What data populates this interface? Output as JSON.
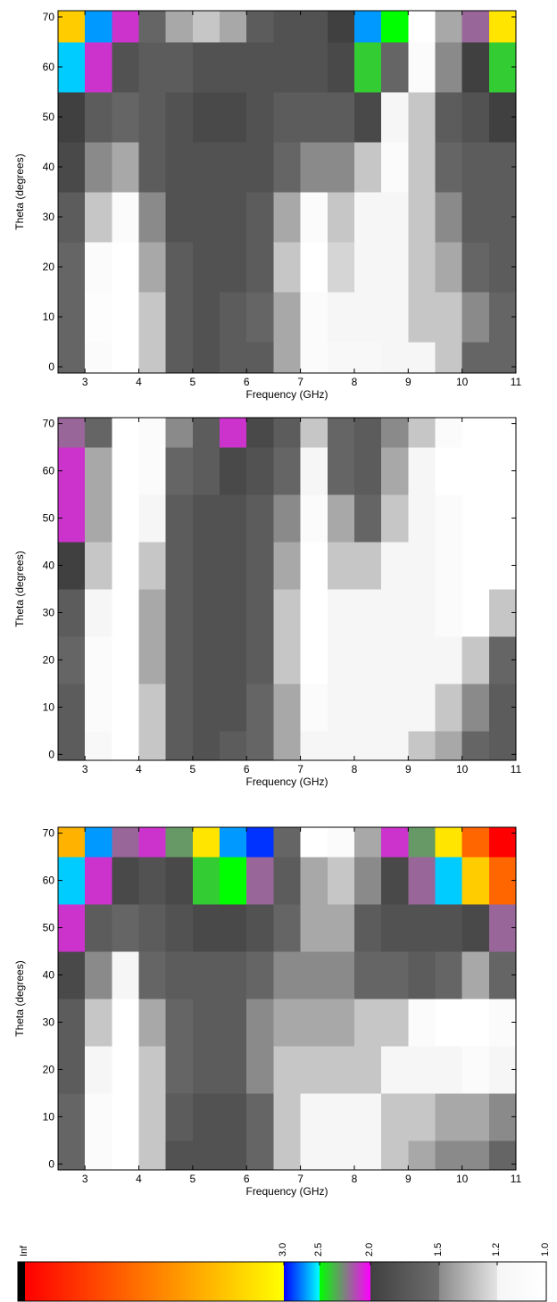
{
  "chart_data": [
    {
      "type": "heatmap",
      "x_label": "Frequency (GHz)",
      "y_label": "Theta (degrees)",
      "x": [
        2.75,
        3.25,
        3.75,
        4.25,
        4.75,
        5.25,
        5.75,
        6.25,
        6.75,
        7.25,
        7.75,
        8.25,
        8.75,
        9.25,
        9.75,
        10.25,
        10.75
      ],
      "y": [
        0,
        10,
        20,
        30,
        40,
        50,
        60,
        70
      ],
      "values": [
        [
          1.6,
          1.1,
          1.0,
          1.3,
          1.7,
          1.8,
          1.7,
          1.7,
          1.4,
          1.1,
          1.15,
          1.15,
          1.2,
          1.2,
          1.3,
          1.6,
          1.6
        ],
        [
          1.6,
          1.05,
          1.0,
          1.3,
          1.7,
          1.8,
          1.7,
          1.6,
          1.4,
          1.1,
          1.2,
          1.2,
          1.2,
          1.3,
          1.3,
          1.5,
          1.6
        ],
        [
          1.6,
          1.1,
          1.0,
          1.4,
          1.7,
          1.8,
          1.8,
          1.7,
          1.3,
          1.0,
          1.25,
          1.2,
          1.2,
          1.3,
          1.4,
          1.6,
          1.7
        ],
        [
          1.7,
          1.3,
          1.1,
          1.5,
          1.8,
          1.8,
          1.8,
          1.7,
          1.4,
          1.1,
          1.3,
          1.2,
          1.2,
          1.3,
          1.5,
          1.7,
          1.7
        ],
        [
          1.9,
          1.5,
          1.4,
          1.7,
          1.8,
          1.8,
          1.8,
          1.8,
          1.6,
          1.5,
          1.5,
          1.3,
          1.1,
          1.3,
          1.6,
          1.7,
          1.7
        ],
        [
          2.0,
          1.7,
          1.6,
          1.7,
          1.8,
          1.9,
          1.9,
          1.8,
          1.7,
          1.7,
          1.7,
          1.9,
          1.2,
          1.3,
          1.7,
          1.8,
          2.0
        ],
        [
          2.6,
          2.1,
          1.8,
          1.7,
          1.7,
          1.8,
          1.8,
          1.8,
          1.8,
          1.8,
          1.9,
          2.4,
          1.6,
          1.1,
          1.5,
          2.0,
          2.4
        ],
        [
          3.2,
          2.7,
          2.1,
          1.6,
          1.4,
          1.3,
          1.4,
          1.7,
          1.8,
          1.8,
          2.0,
          2.7,
          2.5,
          1.0,
          1.4,
          2.2,
          3.1
        ]
      ],
      "xlim": [
        2.5,
        11
      ],
      "ylim": [
        -1.25,
        71.25
      ],
      "xticks": [
        3,
        4,
        5,
        6,
        7,
        8,
        9,
        10,
        11
      ],
      "yticks": [
        0,
        10,
        20,
        30,
        40,
        50,
        60,
        70
      ]
    },
    {
      "type": "heatmap",
      "x_label": "Frequency (GHz)",
      "y_label": "Theta (degrees)",
      "x": [
        2.75,
        3.25,
        3.75,
        4.25,
        4.75,
        5.25,
        5.75,
        6.25,
        6.75,
        7.25,
        7.75,
        8.25,
        8.75,
        9.25,
        9.75,
        10.25,
        10.75
      ],
      "y": [
        0,
        10,
        20,
        30,
        40,
        50,
        60,
        70
      ],
      "values": [
        [
          1.7,
          1.15,
          1.0,
          1.3,
          1.7,
          1.8,
          1.7,
          1.6,
          1.4,
          1.2,
          1.2,
          1.2,
          1.2,
          1.3,
          1.4,
          1.6,
          1.7
        ],
        [
          1.7,
          1.1,
          1.0,
          1.3,
          1.7,
          1.8,
          1.8,
          1.6,
          1.4,
          1.1,
          1.2,
          1.2,
          1.2,
          1.2,
          1.3,
          1.5,
          1.7
        ],
        [
          1.6,
          1.1,
          1.0,
          1.4,
          1.7,
          1.8,
          1.8,
          1.7,
          1.3,
          1.0,
          1.2,
          1.2,
          1.2,
          1.2,
          1.2,
          1.3,
          1.6
        ],
        [
          1.7,
          1.2,
          1.0,
          1.4,
          1.7,
          1.8,
          1.8,
          1.7,
          1.3,
          1.0,
          1.2,
          1.2,
          1.2,
          1.2,
          1.1,
          1.0,
          1.3
        ],
        [
          2.0,
          1.3,
          1.0,
          1.3,
          1.7,
          1.8,
          1.8,
          1.7,
          1.4,
          1.0,
          1.3,
          1.3,
          1.2,
          1.2,
          1.1,
          1.0,
          1.0
        ],
        [
          2.1,
          1.4,
          1.0,
          1.2,
          1.7,
          1.8,
          1.8,
          1.7,
          1.5,
          1.1,
          1.4,
          1.6,
          1.3,
          1.2,
          1.1,
          1.0,
          1.0
        ],
        [
          2.1,
          1.4,
          1.0,
          1.1,
          1.6,
          1.7,
          1.9,
          1.8,
          1.6,
          1.2,
          1.6,
          1.7,
          1.4,
          1.2,
          1.0,
          1.0,
          1.0
        ],
        [
          2.2,
          1.6,
          1.0,
          1.1,
          1.5,
          1.7,
          2.1,
          1.9,
          1.7,
          1.3,
          1.6,
          1.7,
          1.5,
          1.3,
          1.1,
          1.0,
          1.0
        ]
      ],
      "xlim": [
        2.5,
        11
      ],
      "ylim": [
        -1.25,
        71.25
      ],
      "xticks": [
        3,
        4,
        5,
        6,
        7,
        8,
        9,
        10,
        11
      ],
      "yticks": [
        0,
        10,
        20,
        30,
        40,
        50,
        60,
        70
      ]
    },
    {
      "type": "heatmap",
      "x_label": "Frequency (GHz)",
      "y_label": "Theta (degrees)",
      "x": [
        2.75,
        3.25,
        3.75,
        4.25,
        4.75,
        5.25,
        5.75,
        6.25,
        6.75,
        7.25,
        7.75,
        8.25,
        8.75,
        9.25,
        9.75,
        10.25,
        10.75
      ],
      "y": [
        0,
        10,
        20,
        30,
        40,
        50,
        60,
        70
      ],
      "values": [
        [
          1.6,
          1.1,
          1.0,
          1.3,
          1.8,
          1.8,
          1.8,
          1.6,
          1.3,
          1.2,
          1.2,
          1.2,
          1.3,
          1.4,
          1.5,
          1.5,
          1.6
        ],
        [
          1.6,
          1.1,
          1.0,
          1.3,
          1.7,
          1.8,
          1.8,
          1.6,
          1.3,
          1.2,
          1.2,
          1.2,
          1.3,
          1.3,
          1.4,
          1.4,
          1.5
        ],
        [
          1.7,
          1.2,
          1.0,
          1.3,
          1.6,
          1.7,
          1.7,
          1.5,
          1.3,
          1.3,
          1.3,
          1.3,
          1.2,
          1.2,
          1.2,
          1.1,
          1.2
        ],
        [
          1.7,
          1.3,
          1.0,
          1.4,
          1.6,
          1.7,
          1.7,
          1.5,
          1.4,
          1.4,
          1.4,
          1.3,
          1.3,
          1.1,
          1.0,
          1.0,
          1.1
        ],
        [
          1.9,
          1.5,
          1.2,
          1.6,
          1.7,
          1.7,
          1.7,
          1.6,
          1.5,
          1.5,
          1.5,
          1.6,
          1.6,
          1.7,
          1.6,
          1.4,
          1.6
        ],
        [
          2.1,
          1.7,
          1.6,
          1.7,
          1.8,
          1.9,
          1.9,
          1.8,
          1.6,
          1.4,
          1.4,
          1.7,
          1.8,
          1.8,
          1.8,
          1.9,
          2.2
        ],
        [
          2.6,
          2.1,
          1.9,
          1.8,
          1.9,
          2.4,
          2.5,
          2.2,
          1.7,
          1.4,
          1.3,
          1.5,
          1.9,
          2.2,
          2.6,
          3.2,
          3.6
        ],
        [
          3.3,
          2.7,
          2.2,
          2.1,
          2.3,
          3.1,
          2.7,
          2.9,
          1.6,
          1.0,
          1.1,
          1.4,
          2.1,
          2.3,
          3.1,
          3.6,
          4.0
        ]
      ],
      "xlim": [
        2.5,
        11
      ],
      "ylim": [
        -1.25,
        71.25
      ],
      "xticks": [
        3,
        4,
        5,
        6,
        7,
        8,
        9,
        10,
        11
      ],
      "yticks": [
        0,
        10,
        20,
        30,
        40,
        50,
        60,
        70
      ]
    }
  ],
  "colormap": [
    {
      "from": 1.0,
      "to": 1.2,
      "colors": [
        "#ffffff",
        "#f6f6f6"
      ]
    },
    {
      "from": 1.2,
      "to": 1.5,
      "colors": [
        "#e4e4e4",
        "#8a8a8a"
      ]
    },
    {
      "from": 1.5,
      "to": 2.0,
      "colors": [
        "#6e6e6e",
        "#404040"
      ]
    },
    {
      "from": 2.0,
      "to": 2.5,
      "colors": [
        "#ff00ff",
        "#00ff00"
      ]
    },
    {
      "from": 2.5,
      "to": 3.0,
      "colors": [
        "#00ffff",
        "#0000ff"
      ]
    },
    {
      "from": 3.0,
      "colors": [
        "#ffff00",
        "#ff0000"
      ]
    }
  ],
  "inf_color": "#000000",
  "colorbar": {
    "inf_label": "Inf",
    "ticks": [
      {
        "value": 3,
        "label": "3.0"
      },
      {
        "value": 2.5,
        "label": "2.5"
      },
      {
        "value": 2,
        "label": "2.0"
      },
      {
        "value": 1.5,
        "label": "1.5"
      },
      {
        "value": 1.2,
        "label": "1.2"
      },
      {
        "value": 1,
        "label": "1.0"
      }
    ]
  }
}
